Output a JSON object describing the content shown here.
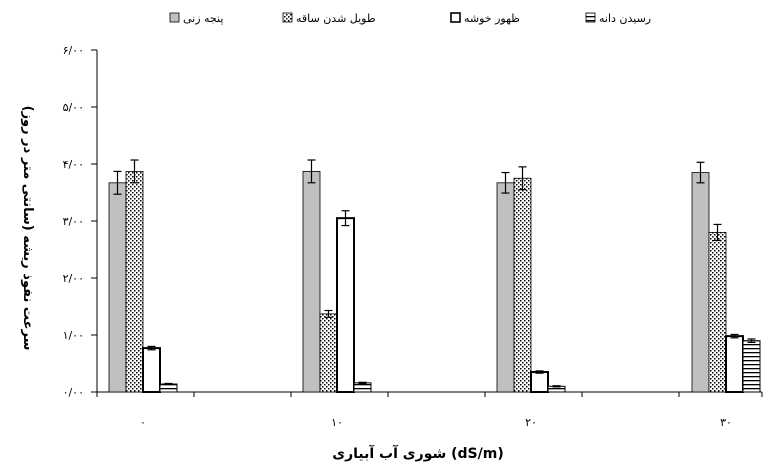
{
  "chart_data": {
    "type": "bar",
    "title": "",
    "xlabel": "شوری آب آبیاری (dS/m)",
    "ylabel": "سرعت نفوذ ریشه (سانتی متر در روز)",
    "categories": [
      "۰",
      "۱۰",
      "۲۰",
      "۳۰"
    ],
    "ylim": [
      0,
      6
    ],
    "yticks": [
      "۰/۰۰",
      "۱/۰۰",
      "۲/۰۰",
      "۳/۰۰",
      "۴/۰۰",
      "۵/۰۰",
      "۶/۰۰"
    ],
    "grid": false,
    "legend_position": "top",
    "series": [
      {
        "name": "پنجه زنی",
        "values": [
          3.67,
          3.87,
          3.67,
          3.85
        ],
        "errors": [
          0.2,
          0.2,
          0.18,
          0.18
        ],
        "pattern": "solid-gray",
        "color": "#c0c0c0"
      },
      {
        "name": "طویل شدن ساقه",
        "values": [
          3.87,
          1.37,
          3.75,
          2.8
        ],
        "errors": [
          0.2,
          0.06,
          0.2,
          0.14
        ],
        "pattern": "dots",
        "color": "#ffffff"
      },
      {
        "name": "ظهور خوشه",
        "values": [
          0.77,
          3.05,
          0.35,
          0.98
        ],
        "errors": [
          0.03,
          0.13,
          0.02,
          0.03
        ],
        "pattern": "hollow",
        "color": "#ffffff"
      },
      {
        "name": "رسیدن دانه",
        "values": [
          0.14,
          0.16,
          0.1,
          0.9
        ],
        "errors": [
          0.01,
          0.01,
          0.01,
          0.03
        ],
        "pattern": "horizontal-lines",
        "color": "#ffffff"
      }
    ]
  }
}
